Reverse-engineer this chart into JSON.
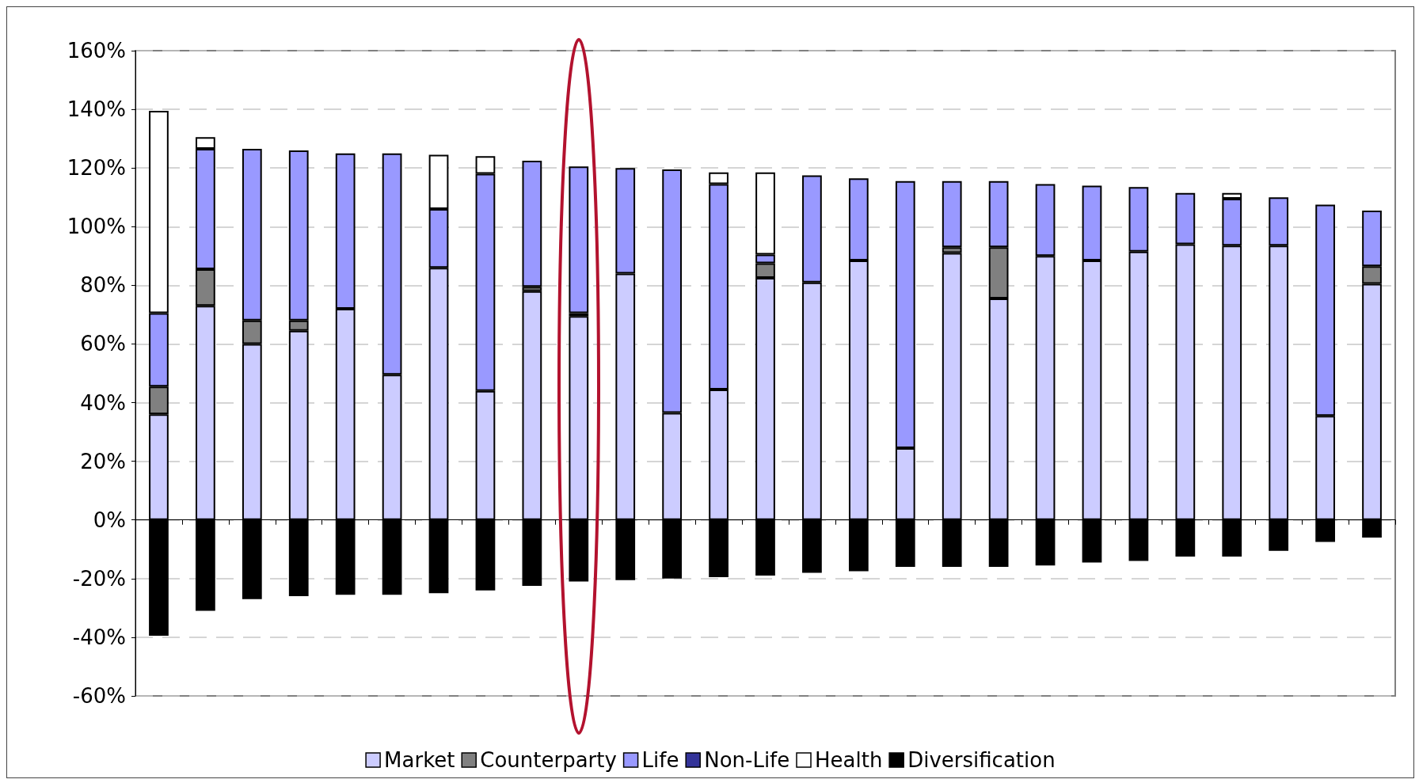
{
  "chart_data": {
    "type": "bar",
    "stacked": true,
    "categories": [
      null,
      null,
      null,
      null,
      null,
      null,
      null,
      null,
      null,
      null,
      null,
      null,
      null,
      null,
      null,
      null,
      null,
      null,
      null,
      null,
      null,
      null,
      null,
      null,
      null,
      null,
      null
    ],
    "series": [
      {
        "name": "Market",
        "color": "#ccccff",
        "values": [
          36,
          73,
          60,
          64.5,
          72,
          49.5,
          86,
          44,
          78,
          69.5,
          84,
          36.5,
          44.5,
          82.5,
          81,
          88.5,
          24.5,
          91,
          75.5,
          90,
          88.5,
          91.5,
          94,
          93.5,
          93.5,
          35.5,
          80.5
        ]
      },
      {
        "name": "Counterparty",
        "color": "#808080",
        "values": [
          9.5,
          12.5,
          8,
          3.5,
          null,
          null,
          null,
          null,
          1.5,
          1,
          null,
          null,
          null,
          5,
          null,
          null,
          null,
          2,
          17.5,
          null,
          null,
          null,
          null,
          null,
          null,
          null,
          6
        ]
      },
      {
        "name": "Life",
        "color": "#9999ff",
        "values": [
          25,
          41,
          58.5,
          58,
          53,
          75.5,
          20,
          74,
          43,
          50,
          36,
          83,
          70,
          3,
          36.5,
          28,
          91,
          22.5,
          22.5,
          24.5,
          25.5,
          22,
          17.5,
          16,
          16.5,
          72,
          19
        ]
      },
      {
        "name": "Non-Life",
        "color": "#333399",
        "values": [
          null,
          null,
          null,
          null,
          null,
          null,
          null,
          null,
          null,
          null,
          null,
          null,
          null,
          null,
          null,
          null,
          null,
          null,
          null,
          null,
          null,
          null,
          null,
          null,
          null,
          null,
          null
        ]
      },
      {
        "name": "Health",
        "color": "#ffffff",
        "values": [
          69,
          4,
          null,
          null,
          null,
          null,
          18.5,
          6,
          null,
          null,
          null,
          null,
          4,
          28,
          null,
          null,
          null,
          null,
          null,
          null,
          null,
          null,
          null,
          2,
          null,
          null,
          null
        ]
      },
      {
        "name": "Diversification",
        "color": "#000000",
        "values": [
          -39.5,
          -31,
          -27,
          -26,
          -25.5,
          -25.5,
          -25,
          -24,
          -22.5,
          -21,
          -20.5,
          -20,
          -19.5,
          -19,
          -18,
          -17.5,
          -16,
          -16,
          -16,
          -15.5,
          -14.5,
          -14,
          -12.5,
          -12.5,
          -10.5,
          -7.5,
          -6
        ]
      }
    ],
    "ylim": [
      -60,
      160
    ],
    "yticks": [
      {
        "value": -60,
        "label": "-60%"
      },
      {
        "value": -40,
        "label": "-40%"
      },
      {
        "value": -20,
        "label": "-20%"
      },
      {
        "value": 0,
        "label": "0%"
      },
      {
        "value": 20,
        "label": "20%"
      },
      {
        "value": 40,
        "label": "40%"
      },
      {
        "value": 60,
        "label": "60%"
      },
      {
        "value": 80,
        "label": "80%"
      },
      {
        "value": 100,
        "label": "100%"
      },
      {
        "value": 120,
        "label": "120%"
      },
      {
        "value": 140,
        "label": "140%"
      },
      {
        "value": 160,
        "label": "160%"
      }
    ],
    "grid": "y",
    "legend": "bottom"
  }
}
